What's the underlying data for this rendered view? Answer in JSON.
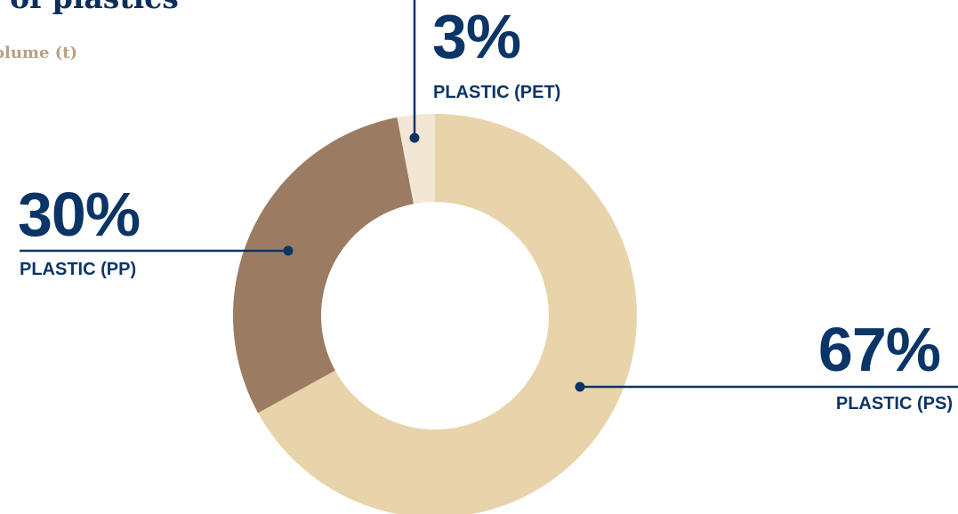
{
  "header": {
    "title": "es of plastics",
    "subtitle": "olume (t)"
  },
  "chart_data": {
    "type": "pie",
    "variant": "donut",
    "title": "es of plastics",
    "subtitle": "olume (t)",
    "unit": "%",
    "slices": [
      {
        "label": "PLASTIC (PS)",
        "value": 67,
        "display": "67%",
        "color": "#e8d4ab"
      },
      {
        "label": "PLASTIC (PP)",
        "value": 30,
        "display": "30%",
        "color": "#9b7c63"
      },
      {
        "label": "PLASTIC (PET)",
        "value": 3,
        "display": "3%",
        "color": "#f3e6d5"
      }
    ],
    "legend": "none",
    "grid": false
  },
  "colors": {
    "label_text": "#0b3566",
    "leader_line": "#0b3566",
    "title_text": "#0b2e5b",
    "subtitle_text": "#b7a085"
  }
}
